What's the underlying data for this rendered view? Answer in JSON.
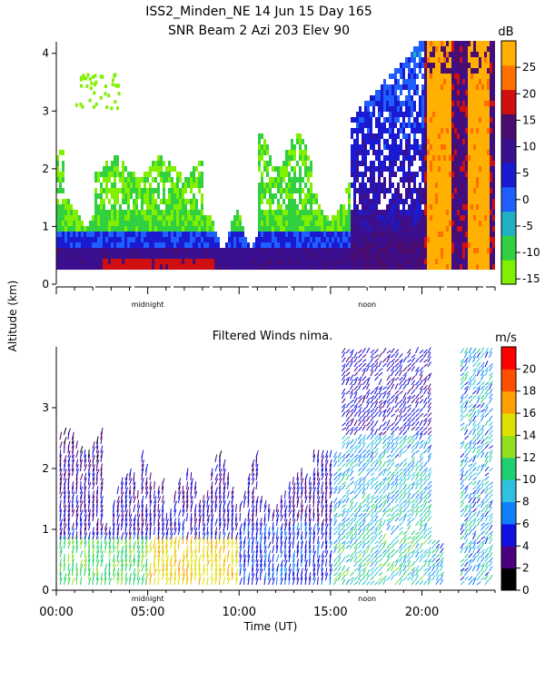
{
  "header": {
    "title_line1": "ISS2_Minden_NE  14 Jun 15 Day 165",
    "title_line2": "SNR Beam 2 Azi 203 Elev 90"
  },
  "chart_data": [
    {
      "type": "heatmap",
      "title": "SNR Beam 2 Azi 203 Elev 90",
      "ylabel": "Altitude (km)",
      "ylim": [
        0,
        4.2
      ],
      "yticks": [
        "0",
        "1",
        "2",
        "3",
        "4"
      ],
      "xlim_hours": [
        0,
        24
      ],
      "markers": [
        {
          "label": "midnight",
          "hour": 5
        },
        {
          "label": "noon",
          "hour": 17
        }
      ],
      "colorbar": {
        "unit": "dB",
        "range": [
          -16,
          30
        ],
        "ticks": [
          "25",
          "20",
          "15",
          "10",
          "5",
          "0",
          "-5",
          "-10",
          "-15"
        ],
        "colors": [
          "#80f000",
          "#30d040",
          "#20b0c0",
          "#1f5fff",
          "#1a1ad0",
          "#3a1090",
          "#4b0c70",
          "#d01010",
          "#ff7000",
          "#ffb000"
        ]
      }
    },
    {
      "type": "scatter",
      "title": "Filtered Winds nima.",
      "xlabel": "Time (UT)",
      "ylabel": "Altitude (km)",
      "ylim": [
        0,
        4
      ],
      "yticks": [
        "0",
        "1",
        "2",
        "3"
      ],
      "xticks": [
        "00:00",
        "05:00",
        "10:00",
        "15:00",
        "20:00"
      ],
      "xlim_hours": [
        0,
        24
      ],
      "markers": [
        {
          "label": "midnight",
          "hour": 5
        },
        {
          "label": "noon",
          "hour": 17
        }
      ],
      "colorbar": {
        "unit": "m/s",
        "range": [
          0,
          22
        ],
        "ticks": [
          "20",
          "18",
          "16",
          "14",
          "12",
          "10",
          "8",
          "6",
          "4",
          "2",
          "0"
        ],
        "colors": [
          "#000000",
          "#4b0080",
          "#1010e0",
          "#1080ff",
          "#30c0e0",
          "#20d070",
          "#90e020",
          "#e0e000",
          "#ffa000",
          "#ff5000",
          "#ff0000"
        ]
      }
    }
  ]
}
